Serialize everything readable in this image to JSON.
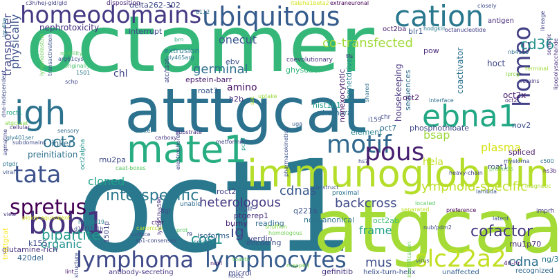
{
  "words": [
    {
      "text": "octamer",
      "color": "#35b779"
    },
    {
      "text": "oct1",
      "color": "#2a788e"
    },
    {
      "text": "atttgcat",
      "color": "#2c728e"
    },
    {
      "text": "atgcaaat",
      "color": "#a5db36"
    },
    {
      "text": "immunoglobulin",
      "color": "#b5de2b"
    },
    {
      "text": "homeodomains",
      "color": "#443983"
    },
    {
      "text": "ubiquitous",
      "color": "#365c8d"
    },
    {
      "text": "cation",
      "color": "#2a788e"
    },
    {
      "text": "mate1",
      "color": "#27ad81"
    },
    {
      "text": "igh",
      "color": "#2c728e"
    },
    {
      "text": "tata",
      "color": "#3b528b"
    },
    {
      "text": "ebna1",
      "color": "#22a884"
    },
    {
      "text": "motif",
      "color": "#31688e"
    },
    {
      "text": "pous",
      "color": "#481f70"
    },
    {
      "text": "bob1",
      "color": "#46327e"
    },
    {
      "text": "lymphoma",
      "color": "#3e4a89"
    },
    {
      "text": "lymphocytes",
      "color": "#365c8d"
    },
    {
      "text": "slc22a2",
      "color": "#c2df23"
    },
    {
      "text": "spretus",
      "color": "#440154"
    },
    {
      "text": "interspecific",
      "color": "#2a788e"
    },
    {
      "text": "homeo",
      "color": "#424086"
    },
    {
      "text": "oct3",
      "color": "#2c728e"
    },
    {
      "text": "cofactor",
      "color": "#453882"
    },
    {
      "text": "lymphoid-specific",
      "color": "#bddf26"
    },
    {
      "text": "bipartite",
      "color": "#1f9a8a"
    },
    {
      "text": "cos1",
      "color": "#21918c"
    },
    {
      "text": "cd36",
      "color": "#21918c"
    },
    {
      "text": "backcross",
      "color": "#3e4a89"
    },
    {
      "text": "co-transfected",
      "color": "#9fda3a"
    },
    {
      "text": "germinal",
      "color": "#2e6f8e"
    },
    {
      "text": "cdnas",
      "color": "#38588c"
    },
    {
      "text": "cloned",
      "color": "#20a386"
    },
    {
      "text": "onecut",
      "color": "#39568c"
    },
    {
      "text": "physically",
      "color": "#3b528b"
    },
    {
      "text": "transporter",
      "color": "#414487"
    },
    {
      "text": "heterologous",
      "color": "#443983"
    },
    {
      "text": "organic",
      "color": "#21918c"
    },
    {
      "text": "frame",
      "color": "#1fa187"
    },
    {
      "text": "mus",
      "color": "#3d4e8a"
    },
    {
      "text": "cdna",
      "color": "#2d708e"
    },
    {
      "text": "ig",
      "color": "#3f4788"
    },
    {
      "text": "bsap",
      "color": "#9bd93c"
    },
    {
      "text": "plasma",
      "color": "#d8e219"
    },
    {
      "text": "hela",
      "color": "#c2df23"
    },
    {
      "text": "amino",
      "color": "#471063"
    },
    {
      "text": "chl",
      "color": "#404688"
    },
    {
      "text": "nephrotoxicity",
      "color": "#46337e"
    },
    {
      "text": "interrupt",
      "color": "#3e4c8a"
    },
    {
      "text": "delta262-302",
      "color": "#3e4a89"
    },
    {
      "text": "disposition",
      "color": "#482576"
    },
    {
      "text": "oct2ba",
      "color": "#481b6d"
    },
    {
      "text": "extrusion",
      "color": "#287d8e"
    },
    {
      "text": "ebv",
      "color": "#3b528b"
    },
    {
      "text": "epstein-barr",
      "color": "#481a6c"
    },
    {
      "text": "ghysdael",
      "color": "#32b67a"
    },
    {
      "text": "coevolutionary",
      "color": "#46327e"
    },
    {
      "text": "h2b",
      "color": "#472d7b"
    },
    {
      "text": "roat3",
      "color": "#39568c"
    },
    {
      "text": "hist1h1",
      "color": "#1e9b8a"
    },
    {
      "text": "humoral",
      "color": "#2e6e8e"
    },
    {
      "text": "regnetdriver",
      "color": "#25858e"
    },
    {
      "text": "nonexocytotic",
      "color": "#48186a"
    },
    {
      "text": "housekeeping",
      "color": "#46337e"
    },
    {
      "text": "sequences",
      "color": "#2e6f8e"
    },
    {
      "text": "hoct",
      "color": "#3e4989"
    },
    {
      "text": "pow",
      "color": "#482878"
    },
    {
      "text": "blr1",
      "color": "#39568c"
    },
    {
      "text": "coactivator",
      "color": "#2d718e"
    },
    {
      "text": "antigen",
      "color": "#472c7a"
    },
    {
      "text": "oct2",
      "color": "#481769"
    },
    {
      "text": "oct2x",
      "color": "#481a6c"
    },
    {
      "text": "oct7",
      "color": "#2d708e"
    },
    {
      "text": "phosphothioate",
      "color": "#3f4889"
    },
    {
      "text": "element",
      "color": "#26828e"
    },
    {
      "text": "spliced",
      "color": "#471365"
    },
    {
      "text": "roat1",
      "color": "#3f4788"
    },
    {
      "text": "nov2",
      "color": "#3e4c8a"
    },
    {
      "text": "preinitiation",
      "color": "#2d718e"
    },
    {
      "text": "linker",
      "color": "#2e6e8e"
    },
    {
      "text": "rnu2pa",
      "color": "#3e4a89"
    },
    {
      "text": "noncanonical",
      "color": "#2c738e"
    },
    {
      "text": "oct2ab",
      "color": "#40bd72"
    },
    {
      "text": "rnu1p70",
      "color": "#482878"
    },
    {
      "text": "reading",
      "color": "#2f6b8e"
    },
    {
      "text": "roct2",
      "color": "#433e85"
    },
    {
      "text": "ptgerep1",
      "color": "#472f7d"
    },
    {
      "text": "ptgir",
      "color": "#3b528b"
    },
    {
      "text": "burny",
      "color": "#482173"
    },
    {
      "text": "verdin",
      "color": "#3f4788"
    },
    {
      "text": "encoding",
      "color": "#3c508b"
    },
    {
      "text": "isoforms",
      "color": "#34618d"
    },
    {
      "text": "glutamine-rich",
      "color": "#46327e"
    },
    {
      "text": "k155",
      "color": "#3d4e8a"
    },
    {
      "text": "420del",
      "color": "#32648e"
    },
    {
      "text": "antibody-secreting",
      "color": "#463480"
    },
    {
      "text": "gefinitib",
      "color": "#46337e"
    },
    {
      "text": "ng/3",
      "color": "#2a768e"
    },
    {
      "text": "microi",
      "color": "#3f4788"
    },
    {
      "text": "helix-turn-helix",
      "color": "#3b528b"
    },
    {
      "text": "unaffected",
      "color": "#33638d"
    },
    {
      "text": "recognized",
      "color": "#31688e"
    },
    {
      "text": "46-hr",
      "color": "#48186a"
    },
    {
      "text": "virus",
      "color": "#3b528b"
    },
    {
      "text": "lint",
      "color": "#48186a"
    },
    {
      "text": "structure",
      "color": "#3e4989"
    },
    {
      "text": "hoct2",
      "color": "#3f4889"
    },
    {
      "text": "novl",
      "color": "#471164"
    },
    {
      "text": "mapped",
      "color": "#7ad151"
    },
    {
      "text": "toasts",
      "color": "#63cb5f"
    },
    {
      "text": "identification",
      "color": "#6ece58"
    },
    {
      "text": "nub/pdm2",
      "color": "#3e4c8a"
    },
    {
      "text": "latent",
      "color": "#3c4f8a"
    },
    {
      "text": "preference",
      "color": "#440154"
    },
    {
      "text": "separated",
      "color": "#bddf26"
    },
    {
      "text": "located",
      "color": "#5cc863"
    },
    {
      "text": "imprh",
      "color": "#453882"
    },
    {
      "text": "hs3b",
      "color": "#482173"
    },
    {
      "text": "magnetic",
      "color": "#addc30"
    },
    {
      "text": "lambda",
      "color": "#39568c"
    },
    {
      "text": "products",
      "color": "#73d056"
    },
    {
      "text": "heavy-chain",
      "color": "#424086"
    },
    {
      "text": "myeloma",
      "color": "#3b528b"
    },
    {
      "text": "c500",
      "color": "#2c728e"
    },
    {
      "text": "retains",
      "color": "#453781"
    },
    {
      "text": "lprcg",
      "color": "#8bd646"
    },
    {
      "text": "terminal",
      "color": "#a0da39"
    },
    {
      "text": "nb41a3",
      "color": "#2e6e8e"
    },
    {
      "text": "lineage",
      "color": "#404588"
    },
    {
      "text": "somatic",
      "color": "#46327e"
    },
    {
      "text": "lipopolysaccharide",
      "color": "#46307e"
    },
    {
      "text": "octanucleotide",
      "color": "#433e85"
    },
    {
      "text": "hodgkin",
      "color": "#2a788e"
    },
    {
      "text": "extraneuronal",
      "color": "#440154"
    },
    {
      "text": "italpha1beta2",
      "color": "#d2e21b"
    },
    {
      "text": "closely",
      "color": "#3d4e8a"
    },
    {
      "text": "c3h/hej-gld/gld",
      "color": "#424086"
    },
    {
      "text": "igc-like",
      "color": "#2d708e"
    },
    {
      "text": "lymphoblastoid",
      "color": "#6ece58"
    },
    {
      "text": "transactivation",
      "color": "#3b528b"
    },
    {
      "text": "mobility",
      "color": "#5ec962"
    },
    {
      "text": "arg61cys",
      "color": "#3b528b"
    },
    {
      "text": "originally",
      "color": "#48c16e"
    },
    {
      "text": "1501",
      "color": "#2a768e"
    },
    {
      "text": "schp",
      "color": "#404688"
    },
    {
      "text": "dna-independent",
      "color": "#3e4989"
    },
    {
      "text": "atgctaat",
      "color": "#84d44b"
    },
    {
      "text": "cellular",
      "color": "#46337e"
    },
    {
      "text": "gly401ser",
      "color": "#2c728e"
    },
    {
      "text": "subdomains",
      "color": "#3d4d8a"
    },
    {
      "text": "agmatine",
      "color": "#414487"
    },
    {
      "text": "ptgdr",
      "color": "#2a788e"
    },
    {
      "text": "viral",
      "color": "#3b528b"
    },
    {
      "text": "ploidy-equivalent",
      "color": "#d2e21b"
    },
    {
      "text": "view",
      "color": "#46337e"
    },
    {
      "text": "rs316019",
      "color": "#26828e"
    },
    {
      "text": "tnattgcat",
      "color": "#fde725"
    },
    {
      "text": "d19f11s1h",
      "color": "#404588"
    },
    {
      "text": "1501p",
      "color": "#414487"
    },
    {
      "text": "lys595/lys596",
      "color": "#472f7d"
    },
    {
      "text": "surface",
      "color": "#3b528b"
    },
    {
      "text": "sp1-consensus",
      "color": "#3e4a89"
    },
    {
      "text": "canonical",
      "color": "#b8de29"
    },
    {
      "text": "prot",
      "color": "#58c765"
    },
    {
      "text": "shuffion",
      "color": "#86d549"
    },
    {
      "text": "homologous",
      "color": "#73d056"
    },
    {
      "text": "f9",
      "color": "#3e4a89"
    },
    {
      "text": "ser385",
      "color": "#2c728e"
    },
    {
      "text": "ctor",
      "color": "#481b6d"
    },
    {
      "text": "figl",
      "color": "#3e4a89"
    },
    {
      "text": "unable",
      "color": "#2f6c8e"
    },
    {
      "text": "q221a",
      "color": "#3b528b"
    },
    {
      "text": "proximal",
      "color": "#2c738e"
    },
    {
      "text": "pharmacokinetics",
      "color": "#3b528b"
    },
    {
      "text": "construct",
      "color": "#3a548c"
    },
    {
      "text": "pcc4",
      "color": "#1fa088"
    },
    {
      "text": "hs7",
      "color": "#3f4788"
    },
    {
      "text": "electrophoretic",
      "color": "#3f4788"
    },
    {
      "text": "metformin",
      "color": "#414487"
    },
    {
      "text": "caat-boxes",
      "color": "#5cc863"
    },
    {
      "text": "carboxy",
      "color": "#46327e"
    },
    {
      "text": "center",
      "color": "#2c728e"
    },
    {
      "text": "substrate",
      "color": "#46307e"
    },
    {
      "text": "oct2alpha",
      "color": "#20928c"
    },
    {
      "text": "atc/taat",
      "color": "#3f4788"
    },
    {
      "text": "gly465arg",
      "color": "#2a788e"
    },
    {
      "text": "brn",
      "color": "#27ad81"
    },
    {
      "text": "e112",
      "color": "#2c728e"
    },
    {
      "text": "uptake",
      "color": "#9bd93c"
    },
    {
      "text": "ssc",
      "color": "#b5de2b"
    },
    {
      "text": "tfs",
      "color": "#482475"
    },
    {
      "text": "shared",
      "color": "#2d718e"
    },
    {
      "text": "uga",
      "color": "#35608d"
    },
    {
      "text": "i159",
      "color": "#3e4989"
    },
    {
      "text": "interface",
      "color": "#2e6e8e"
    },
    {
      "text": "chr",
      "color": "#3e4989"
    },
    {
      "text": "sensory",
      "color": "#31688e"
    },
    {
      "text": "oct2",
      "color": "#481769"
    },
    {
      "text": "roct1",
      "color": "#22a884"
    }
  ]
}
